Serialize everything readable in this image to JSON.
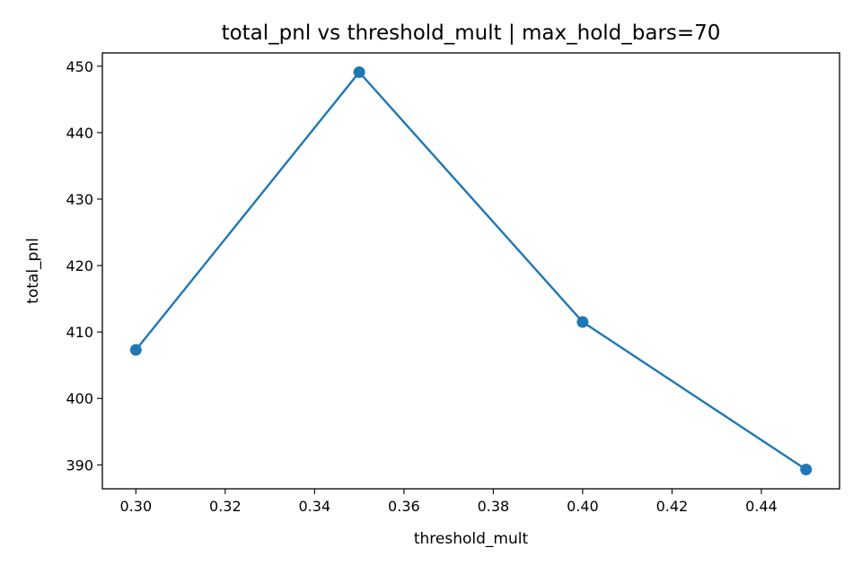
{
  "chart_data": {
    "type": "line",
    "title": "total_pnl vs threshold_mult | max_hold_bars=70",
    "xlabel": "threshold_mult",
    "ylabel": "total_pnl",
    "xlim": [
      0.2925,
      0.4575
    ],
    "ylim": [
      386.4,
      452.0
    ],
    "xticks": [
      0.3,
      0.32,
      0.34,
      0.36,
      0.38,
      0.4,
      0.42,
      0.44
    ],
    "xtick_labels": [
      "0.30",
      "0.32",
      "0.34",
      "0.36",
      "0.38",
      "0.40",
      "0.42",
      "0.44"
    ],
    "yticks": [
      390,
      400,
      410,
      420,
      430,
      440,
      450
    ],
    "ytick_labels": [
      "390",
      "400",
      "410",
      "420",
      "430",
      "440",
      "450"
    ],
    "grid": false,
    "series": [
      {
        "x": [
          0.3,
          0.35,
          0.4,
          0.45
        ],
        "y": [
          407.3,
          449.1,
          411.5,
          389.3
        ],
        "color": "#1f77b4",
        "marker": "circle"
      }
    ]
  }
}
